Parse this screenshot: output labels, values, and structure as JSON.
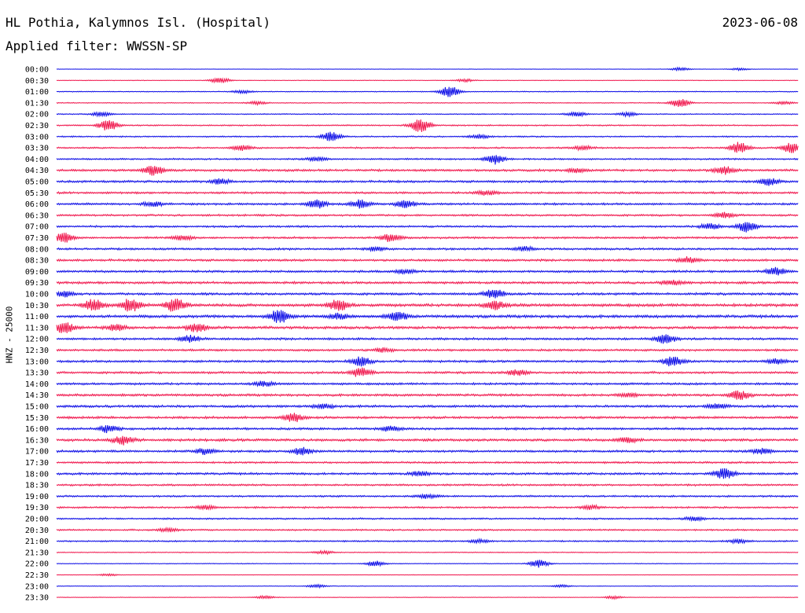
{
  "header": {
    "station": "HL Pothia, Kalymnos Isl. (Hospital)",
    "date": "2023-06-08",
    "filter": "Applied filter: WWSSN-SP"
  },
  "channel_label": "HNZ - 25000",
  "colors": {
    "trace_a": "#0a0ae6",
    "trace_b": "#f0144b"
  },
  "chart_data": {
    "type": "helicorder",
    "rows": [
      {
        "time": "00:00",
        "level": 0.3,
        "events": [
          [
            0.84,
            0.8
          ],
          [
            0.92,
            0.6
          ]
        ]
      },
      {
        "time": "00:30",
        "level": 0.4,
        "events": [
          [
            0.22,
            1.5
          ],
          [
            0.55,
            0.7
          ]
        ]
      },
      {
        "time": "01:00",
        "level": 0.6,
        "events": [
          [
            0.53,
            3.0
          ],
          [
            0.25,
            0.8
          ]
        ]
      },
      {
        "time": "01:30",
        "level": 0.6,
        "events": [
          [
            0.84,
            2.4
          ],
          [
            0.27,
            0.8
          ],
          [
            0.98,
            0.7
          ]
        ]
      },
      {
        "time": "02:00",
        "level": 0.7,
        "events": [
          [
            0.06,
            1.2
          ],
          [
            0.7,
            1.2
          ],
          [
            0.77,
            1.0
          ]
        ]
      },
      {
        "time": "02:30",
        "level": 0.9,
        "events": [
          [
            0.07,
            3.0
          ],
          [
            0.49,
            4.2
          ]
        ]
      },
      {
        "time": "03:00",
        "level": 0.9,
        "events": [
          [
            0.37,
            2.4
          ],
          [
            0.57,
            1.0
          ]
        ]
      },
      {
        "time": "03:30",
        "level": 1.1,
        "events": [
          [
            0.92,
            3.0
          ],
          [
            0.99,
            2.8
          ],
          [
            0.25,
            1.3
          ],
          [
            0.71,
            1.2
          ]
        ]
      },
      {
        "time": "04:00",
        "level": 1.1,
        "events": [
          [
            0.59,
            2.8
          ],
          [
            0.35,
            1.0
          ]
        ]
      },
      {
        "time": "04:30",
        "level": 1.5,
        "events": [
          [
            0.13,
            2.6
          ],
          [
            0.9,
            2.0
          ],
          [
            0.7,
            1.2
          ]
        ]
      },
      {
        "time": "05:00",
        "level": 1.5,
        "events": [
          [
            0.96,
            1.8
          ],
          [
            0.22,
            1.3
          ]
        ]
      },
      {
        "time": "05:30",
        "level": 1.4,
        "events": [
          [
            0.58,
            1.2
          ]
        ]
      },
      {
        "time": "06:00",
        "level": 1.4,
        "events": [
          [
            0.35,
            2.2
          ],
          [
            0.41,
            2.2
          ],
          [
            0.47,
            2.0
          ],
          [
            0.13,
            1.3
          ]
        ]
      },
      {
        "time": "06:30",
        "level": 1.3,
        "events": [
          [
            0.9,
            1.4
          ]
        ]
      },
      {
        "time": "07:00",
        "level": 1.3,
        "events": [
          [
            0.93,
            3.0
          ],
          [
            0.88,
            1.6
          ]
        ]
      },
      {
        "time": "07:30",
        "level": 1.4,
        "events": [
          [
            0.01,
            2.4
          ],
          [
            0.45,
            2.2
          ],
          [
            0.17,
            1.2
          ]
        ]
      },
      {
        "time": "08:00",
        "level": 1.4,
        "events": [
          [
            0.43,
            1.0
          ],
          [
            0.63,
            1.0
          ]
        ]
      },
      {
        "time": "08:30",
        "level": 1.5,
        "events": [
          [
            0.85,
            1.6
          ]
        ]
      },
      {
        "time": "09:00",
        "level": 1.5,
        "events": [
          [
            0.97,
            2.0
          ],
          [
            0.47,
            1.2
          ]
        ]
      },
      {
        "time": "09:30",
        "level": 1.6,
        "events": [
          [
            0.83,
            1.4
          ]
        ]
      },
      {
        "time": "10:00",
        "level": 1.6,
        "events": [
          [
            0.59,
            2.6
          ],
          [
            0.01,
            1.4
          ]
        ]
      },
      {
        "time": "10:30",
        "level": 2.0,
        "events": [
          [
            0.05,
            3.0
          ],
          [
            0.1,
            3.6
          ],
          [
            0.16,
            3.4
          ],
          [
            0.38,
            3.0
          ],
          [
            0.59,
            2.4
          ]
        ]
      },
      {
        "time": "11:00",
        "level": 1.9,
        "events": [
          [
            0.3,
            3.6
          ],
          [
            0.46,
            2.2
          ],
          [
            0.38,
            1.4
          ]
        ]
      },
      {
        "time": "11:30",
        "level": 1.8,
        "events": [
          [
            0.01,
            3.0
          ],
          [
            0.19,
            2.2
          ],
          [
            0.08,
            1.6
          ]
        ]
      },
      {
        "time": "12:00",
        "level": 1.5,
        "events": [
          [
            0.82,
            2.6
          ],
          [
            0.18,
            1.8
          ]
        ]
      },
      {
        "time": "12:30",
        "level": 1.4,
        "events": [
          [
            0.44,
            1.0
          ]
        ]
      },
      {
        "time": "13:00",
        "level": 1.5,
        "events": [
          [
            0.83,
            2.8
          ],
          [
            0.41,
            2.4
          ],
          [
            0.97,
            1.4
          ]
        ]
      },
      {
        "time": "13:30",
        "level": 1.5,
        "events": [
          [
            0.41,
            2.4
          ],
          [
            0.62,
            1.4
          ]
        ]
      },
      {
        "time": "14:00",
        "level": 1.5,
        "events": [
          [
            0.28,
            1.2
          ]
        ]
      },
      {
        "time": "14:30",
        "level": 1.6,
        "events": [
          [
            0.92,
            2.4
          ],
          [
            0.77,
            1.0
          ]
        ]
      },
      {
        "time": "15:00",
        "level": 1.6,
        "events": [
          [
            0.89,
            1.2
          ],
          [
            0.36,
            1.2
          ]
        ]
      },
      {
        "time": "15:30",
        "level": 1.6,
        "events": [
          [
            0.32,
            2.2
          ]
        ]
      },
      {
        "time": "16:00",
        "level": 1.5,
        "events": [
          [
            0.07,
            2.0
          ],
          [
            0.45,
            1.2
          ]
        ]
      },
      {
        "time": "16:30",
        "level": 1.7,
        "events": [
          [
            0.09,
            2.4
          ],
          [
            0.77,
            1.2
          ]
        ]
      },
      {
        "time": "17:00",
        "level": 1.5,
        "events": [
          [
            0.33,
            2.0
          ],
          [
            0.2,
            1.4
          ],
          [
            0.95,
            1.4
          ]
        ]
      },
      {
        "time": "17:30",
        "level": 1.3,
        "events": []
      },
      {
        "time": "18:00",
        "level": 1.5,
        "events": [
          [
            0.9,
            2.8
          ],
          [
            0.49,
            1.2
          ]
        ]
      },
      {
        "time": "18:30",
        "level": 1.3,
        "events": []
      },
      {
        "time": "19:00",
        "level": 1.2,
        "events": [
          [
            0.5,
            1.0
          ]
        ]
      },
      {
        "time": "19:30",
        "level": 1.2,
        "events": [
          [
            0.2,
            1.0
          ],
          [
            0.72,
            1.0
          ]
        ]
      },
      {
        "time": "20:00",
        "level": 1.1,
        "events": [
          [
            0.86,
            1.0
          ]
        ]
      },
      {
        "time": "20:30",
        "level": 1.1,
        "events": [
          [
            0.15,
            1.0
          ]
        ]
      },
      {
        "time": "21:00",
        "level": 1.0,
        "events": [
          [
            0.92,
            1.0
          ],
          [
            0.57,
            0.8
          ]
        ]
      },
      {
        "time": "21:30",
        "level": 0.6,
        "events": [
          [
            0.36,
            0.8
          ]
        ]
      },
      {
        "time": "22:00",
        "level": 0.5,
        "events": [
          [
            0.65,
            2.0
          ],
          [
            0.43,
            1.5
          ]
        ]
      },
      {
        "time": "22:30",
        "level": 0.3,
        "events": [
          [
            0.07,
            0.6
          ]
        ]
      },
      {
        "time": "23:00",
        "level": 0.4,
        "events": [
          [
            0.35,
            0.8
          ],
          [
            0.68,
            0.6
          ]
        ]
      },
      {
        "time": "23:30",
        "level": 0.4,
        "events": [
          [
            0.28,
            0.8
          ],
          [
            0.75,
            0.7
          ]
        ]
      }
    ]
  }
}
